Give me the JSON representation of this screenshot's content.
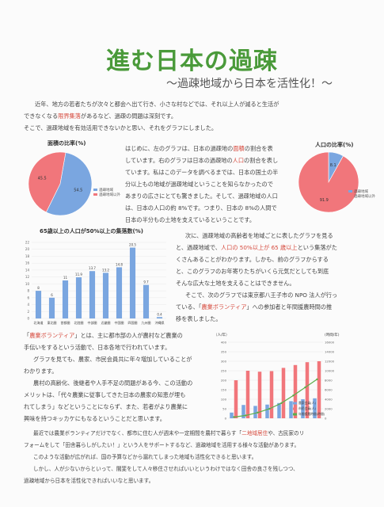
{
  "title": "進む日本の過疎",
  "subtitle": "～過疎地域から日本を活性化！～",
  "intro": {
    "l1a": "近年、地方の若者たちが次々と都会へ出て行き、小さな村などでは、それ以上人が減ると生活が",
    "l2a": "できなくなる",
    "l2b": "限界集落",
    "l2c": "があるなど、過疎の問題は深刻です。",
    "l3": "そこで、過疎地域を有効活用できないかと思い、それをグラフにしました。"
  },
  "colors": {
    "pink": "#f1767b",
    "blue": "#7aa6e0",
    "green": "#5cae4a",
    "red": "#d64a3d"
  },
  "body1": {
    "l1a": "はじめに、左のグラフは、日本の過疎地の",
    "l1b": "面積",
    "l1c": "の割合を表",
    "l2": "しています。右のグラフは日本の過疎地の",
    "l2b": "人口",
    "l2c": "の割合を表し",
    "l3": "ています。私はこのデータを調べるまでは、日本の国土の半",
    "l4": "分以上もの地域が過疎地域ということを知らなかったので",
    "l5": "あまりの広さにとても驚きました。そして、過疎地域の人口",
    "l6": "は、日本の人口の約 8%です。つまり、日本の 8%の人間で",
    "l7": "日本の半分もの土地を支えているということです。"
  },
  "body2": {
    "l1": "次に、過疎地域の高齢者を地域ごとに表したグラフを見る",
    "l2a": "と、過疎地域で、",
    "l2b": "人口の 50%以上が 65 歳以上",
    "l2c": "という集落がた",
    "l3": "くさんあることがわかります。しかも、前のグラフからする",
    "l4": "と、このグラフのお年寄りたちがいくら元気だとしても到底",
    "l5": "そんな広大な土地を支えることはできません。",
    "l6": "そこで、次のグラフでは東京都八王子市の NPO 法人が行っ",
    "l7a": "ている、「",
    "l7b": "農業ボランティア",
    "l7c": "」への参加者と年間援農時間の推",
    "l8": "移を表しました。"
  },
  "body3": {
    "l1a": "「",
    "l1b": "農業ボランティア",
    "l1c": "」とは、主に都市部の人が農村など農業の",
    "l2": "手伝いをするという活動で、日本各地で行われています。",
    "l3": "グラフを見ても、農家、市民会員共に年々増加していることが",
    "l4": "わかります。",
    "l5": "農村の高齢化、後継者や人手不足の問題がある今、この活動の",
    "l6": "メリットは、「代々農業に従事してきた日本の農家の知恵が埋も",
    "l7": "れてしまう」などということにならず、また、若者がより農業に",
    "l8": "興味を持つキッカケにもなるということだと思います。"
  },
  "body4": {
    "l1a": "最近では農業ボランティアだけでなく、都市に住む人が週末や一定期間を農村で暮らす「",
    "l1b": "二地域居住",
    "l1c": "や、古民家のリ",
    "l2": "フォームをして「田舎暮らしがしたい！」という人をサポートするなど、過疎地域を活用する様々な活動があります。",
    "l3": "このような活動が広がれば、国の予算などから漏れてしまった地域も活性化できると思います。",
    "l4": "しかし、人が少ないからといって、闇斐をして人々移住させればいいというわけではなく田舎の良さを残しつつ、",
    "l5": "過疎地域から日本を活性化できればいいなと思います。"
  },
  "chart_data": [
    {
      "type": "pie",
      "title": "面積の比率(%)",
      "labels": [
        "過疎地域",
        "過疎地域以外"
      ],
      "values": [
        54.5,
        45.5
      ],
      "data_labels": [
        "54.5",
        "45.5"
      ],
      "colors": [
        "#7aa6e0",
        "#f1767b"
      ]
    },
    {
      "type": "pie",
      "title": "人口の比率(%)",
      "labels": [
        "過疎地域",
        "過疎地域以外"
      ],
      "values": [
        8.1,
        91.9
      ],
      "data_labels": [
        "8.1",
        "91.9"
      ],
      "colors": [
        "#7aa6e0",
        "#f1767b"
      ]
    },
    {
      "type": "bar",
      "title": "65歳以上の人口が50%以上の集落数(%)",
      "categories": [
        "北海道",
        "東北圏",
        "首都圏",
        "北陸圏",
        "中部圏",
        "近畿圏",
        "中国圏",
        "四国圏",
        "九州圏",
        "沖縄県"
      ],
      "values": [
        8,
        6,
        11,
        11.9,
        13.7,
        13.2,
        14.8,
        20.5,
        9.7,
        0.4
      ],
      "data_labels": [
        "8",
        "6",
        "11",
        "11.9",
        "13.7",
        "13.2",
        "14.8",
        "20.5",
        "9.7",
        "0.4"
      ],
      "ylim": [
        0,
        22
      ],
      "yticks": [
        "0",
        "2",
        "4",
        "6",
        "8",
        "10",
        "12",
        "14",
        "16",
        "18",
        "20",
        "22"
      ],
      "color": "#7aa6e0"
    },
    {
      "type": "bar+line",
      "ylabel_left": "（人/年）",
      "ylabel_right": "(時間/年)",
      "categories": [
        "",
        "",
        "",
        "",
        "",
        "",
        "",
        ""
      ],
      "series": [
        {
          "name": "農家会員(人)",
          "values": [
            30,
            70,
            65,
            72,
            80,
            90,
            100,
            105
          ],
          "color": "#7aa6e0"
        },
        {
          "name": "市民会員(人)",
          "values": [
            200,
            250,
            245,
            248,
            265,
            280,
            295,
            300
          ],
          "color": "#f1767b"
        },
        {
          "name": "年間援農時間(時間)",
          "values": [
            250,
            600,
            1200,
            2000,
            3200,
            4800,
            6500,
            8200
          ],
          "color": "#5cae4a"
        }
      ],
      "bar_labels_pink": [
        "",
        "",
        "",
        "",
        "",
        "",
        "",
        ""
      ],
      "yticks_left": [
        "0",
        "50",
        "100",
        "150",
        "200",
        "250",
        "300",
        "350",
        "400"
      ],
      "yticks_right": [
        "0",
        "2000",
        "4000",
        "6000",
        "8000",
        "10000",
        "12000",
        "14000",
        "16000"
      ],
      "ylim_left": [
        0,
        400
      ],
      "ylim_right": [
        0,
        16000
      ]
    }
  ]
}
